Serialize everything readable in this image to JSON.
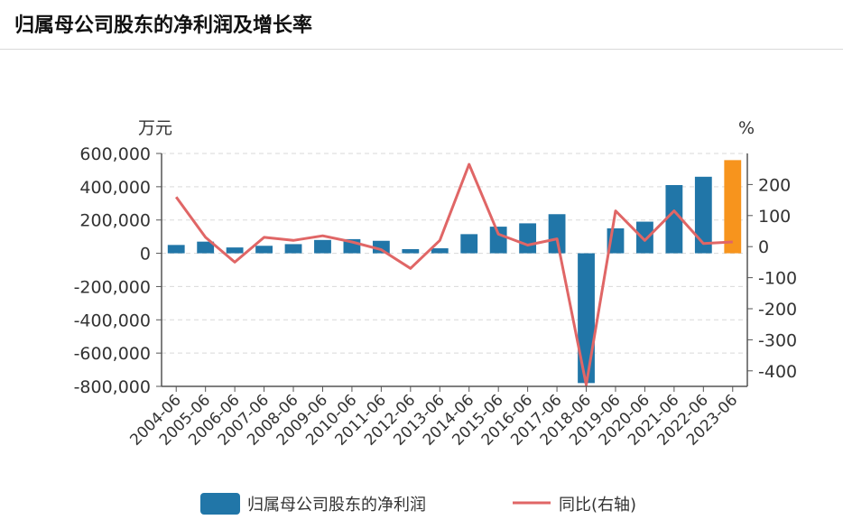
{
  "page": {
    "title": "归属母公司股东的净利润及增长率"
  },
  "chart_data": {
    "type": "bar",
    "title": "归属母公司股东的净利润及增长率",
    "categories": [
      "2004-06",
      "2005-06",
      "2006-06",
      "2007-06",
      "2008-06",
      "2009-06",
      "2010-06",
      "2011-06",
      "2012-06",
      "2013-06",
      "2014-06",
      "2015-06",
      "2016-06",
      "2017-06",
      "2018-06",
      "2019-06",
      "2020-06",
      "2021-06",
      "2022-06",
      "2023-06"
    ],
    "left_axis": {
      "unit": "万元",
      "ylim": [
        -800000,
        600000
      ],
      "ticks": [
        600000,
        400000,
        200000,
        0,
        -200000,
        -400000,
        -600000,
        -800000
      ],
      "tick_labels": [
        "600,000",
        "400,000",
        "200,000",
        "0",
        "-200,000",
        "-400,000",
        "-600,000",
        "-800,000"
      ]
    },
    "right_axis": {
      "unit": "%",
      "ylim": [
        -450,
        300
      ],
      "ticks": [
        200,
        100,
        0,
        -100,
        -200,
        -300,
        -400
      ],
      "tick_labels": [
        "200",
        "100",
        "0",
        "-100",
        "-200",
        "-300",
        "-400"
      ]
    },
    "series": [
      {
        "name": "归属母公司股东的净利润",
        "type": "bar",
        "axis": "left",
        "color": "#2176a8",
        "highlight_color": "#f7941d",
        "highlight_index": 19,
        "values": [
          50000,
          70000,
          35000,
          45000,
          55000,
          80000,
          85000,
          75000,
          25000,
          30000,
          115000,
          160000,
          180000,
          235000,
          -780000,
          150000,
          190000,
          410000,
          460000,
          560000
        ]
      },
      {
        "name": "同比(右轴)",
        "type": "line",
        "axis": "right",
        "color": "#e06666",
        "values": [
          160,
          30,
          -50,
          30,
          20,
          35,
          15,
          -10,
          -70,
          20,
          265,
          40,
          5,
          25,
          -445,
          115,
          20,
          115,
          10,
          15
        ]
      }
    ],
    "legend": {
      "placement": "bottom",
      "labels": [
        "归属母公司股东的净利润",
        "同比(右轴)"
      ]
    }
  }
}
